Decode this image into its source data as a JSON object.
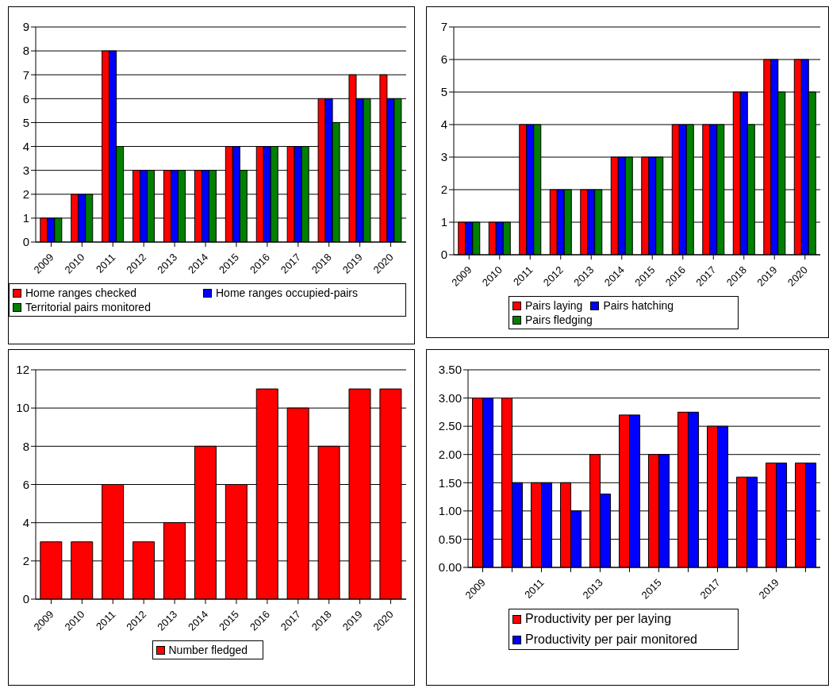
{
  "chart_data": [
    {
      "type": "bar",
      "categories": [
        "2009",
        "2010",
        "2011",
        "2012",
        "2013",
        "2014",
        "2015",
        "2016",
        "2017",
        "2018",
        "2019",
        "2020"
      ],
      "series": [
        {
          "name": "Home ranges checked",
          "color": "#ff0000",
          "values": [
            1,
            2,
            8,
            3,
            3,
            3,
            4,
            4,
            4,
            6,
            7,
            7
          ]
        },
        {
          "name": "Home ranges occupied-pairs",
          "color": "#0000ff",
          "values": [
            1,
            2,
            8,
            3,
            3,
            3,
            4,
            4,
            4,
            6,
            6,
            6
          ]
        },
        {
          "name": "Territorial pairs monitored",
          "color": "#008000",
          "values": [
            1,
            2,
            4,
            3,
            3,
            3,
            3,
            4,
            4,
            5,
            6,
            6
          ]
        }
      ],
      "ylim": [
        0,
        9
      ],
      "yticks": [
        0,
        1,
        2,
        3,
        4,
        5,
        6,
        7,
        8,
        9
      ],
      "grid": "y",
      "legend": "bottom"
    },
    {
      "type": "bar",
      "categories": [
        "2009",
        "2010",
        "2011",
        "2012",
        "2013",
        "2014",
        "2015",
        "2016",
        "2017",
        "2018",
        "2019",
        "2020"
      ],
      "series": [
        {
          "name": "Pairs laying",
          "color": "#ff0000",
          "values": [
            1,
            1,
            4,
            2,
            2,
            3,
            3,
            4,
            4,
            5,
            6,
            6
          ]
        },
        {
          "name": "Pairs hatching",
          "color": "#0000ff",
          "values": [
            1,
            1,
            4,
            2,
            2,
            3,
            3,
            4,
            4,
            5,
            6,
            6
          ]
        },
        {
          "name": "Pairs fledging",
          "color": "#008000",
          "values": [
            1,
            1,
            4,
            2,
            2,
            3,
            3,
            4,
            4,
            4,
            5,
            5
          ]
        }
      ],
      "ylim": [
        0,
        7
      ],
      "yticks": [
        0,
        1,
        2,
        3,
        4,
        5,
        6,
        7
      ],
      "grid": "y",
      "legend": "bottom"
    },
    {
      "type": "bar",
      "categories": [
        "2009",
        "2010",
        "2011",
        "2012",
        "2013",
        "2014",
        "2015",
        "2016",
        "2017",
        "2018",
        "2019",
        "2020"
      ],
      "series": [
        {
          "name": "Number fledged",
          "color": "#ff0000",
          "values": [
            3,
            3,
            6,
            3,
            4,
            8,
            6,
            11,
            10,
            8,
            11,
            11
          ]
        }
      ],
      "ylim": [
        0,
        12
      ],
      "yticks": [
        0,
        2,
        4,
        6,
        8,
        10,
        12
      ],
      "grid": "y",
      "legend": "bottom"
    },
    {
      "type": "bar",
      "categories": [
        "2009",
        null,
        "2011",
        null,
        "2013",
        null,
        "2015",
        null,
        "2017",
        null,
        "2019",
        null
      ],
      "series": [
        {
          "name": "Productivity per per laying",
          "color": "#ff0000",
          "values": [
            3,
            3,
            1.5,
            1.5,
            2,
            2.7,
            2,
            2.75,
            2.5,
            1.6,
            1.85,
            1.85
          ]
        },
        {
          "name": "Productivity per pair monitored",
          "color": "#0000ff",
          "values": [
            3,
            1.5,
            1.5,
            1,
            1.3,
            2.7,
            2,
            2.75,
            2.5,
            1.6,
            1.85,
            1.85
          ]
        }
      ],
      "ylim": [
        0,
        3.5
      ],
      "yticks": [
        {
          "value": 0,
          "label": "0.00"
        },
        {
          "value": 0.5,
          "label": "0.50"
        },
        {
          "value": 1,
          "label": "1.00"
        },
        {
          "value": 1.5,
          "label": "1.50"
        },
        {
          "value": 2,
          "label": "2.00"
        },
        {
          "value": 2.5,
          "label": "2.50"
        },
        {
          "value": 3,
          "label": "3.00"
        },
        {
          "value": 3.5,
          "label": "3.50"
        }
      ],
      "grid": "y",
      "legend": "bottom"
    }
  ]
}
